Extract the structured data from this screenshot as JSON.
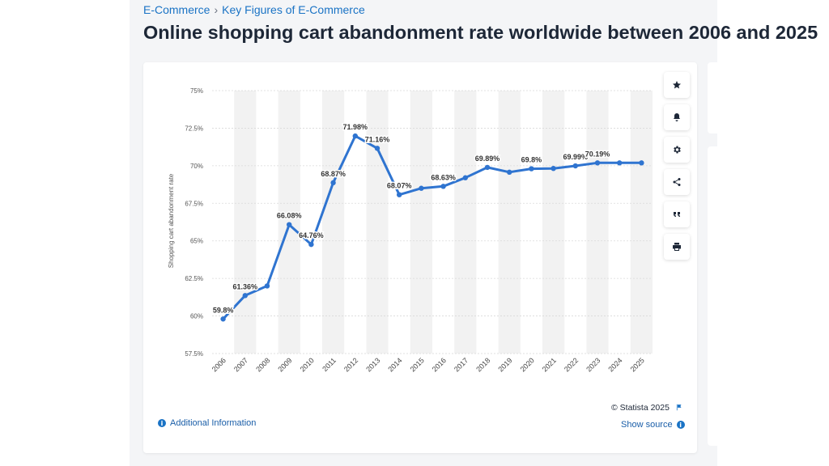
{
  "breadcrumb": {
    "parent": "E-Commerce",
    "separator": "›",
    "current": "Key Figures of E-Commerce"
  },
  "page_title": "Online shopping cart abandonment rate worldwide between 2006 and 2025",
  "toolbar": {
    "items": [
      {
        "name": "favorite",
        "icon": "star-icon"
      },
      {
        "name": "notification",
        "icon": "bell-icon"
      },
      {
        "name": "settings",
        "icon": "gear-icon"
      },
      {
        "name": "share",
        "icon": "share-icon"
      },
      {
        "name": "cite",
        "icon": "quote-icon"
      },
      {
        "name": "print",
        "icon": "print-icon"
      }
    ]
  },
  "footer": {
    "copyright": "© Statista 2025",
    "flag_icon": "flag-icon",
    "additional_info": "Additional Information",
    "show_source": "Show source",
    "info_icon_glyph": "i"
  },
  "colors": {
    "line": "#2f74d0",
    "accent": "#1a73c5",
    "title": "#1d2737",
    "band": "#f2f2f2"
  },
  "chart_data": {
    "type": "line",
    "ylabel": "Shopping cart abandonment rate",
    "xlabel": "",
    "ylim": [
      57.5,
      75
    ],
    "yticks": [
      "57.5%",
      "60%",
      "62.5%",
      "65%",
      "67.5%",
      "70%",
      "72.5%",
      "75%"
    ],
    "ytick_values": [
      57.5,
      60,
      62.5,
      65,
      67.5,
      70,
      72.5,
      75
    ],
    "grid": true,
    "categories": [
      "2006",
      "2007",
      "2008",
      "2009",
      "2010",
      "2011",
      "2012",
      "2013",
      "2014",
      "2015",
      "2016",
      "2017",
      "2018",
      "2019",
      "2020",
      "2021",
      "2022",
      "2023",
      "2024",
      "2025"
    ],
    "values": [
      59.8,
      61.36,
      62.0,
      66.08,
      64.76,
      68.87,
      71.98,
      71.16,
      68.07,
      68.5,
      68.63,
      69.2,
      69.89,
      69.57,
      69.8,
      69.82,
      69.99,
      70.19,
      70.19,
      70.19
    ],
    "data_labels": {
      "0": "59.8%",
      "1": "61.36%",
      "3": "66.08%",
      "4": "64.76%",
      "5": "68.87%",
      "6": "71.98%",
      "7": "71.16%",
      "8": "68.07%",
      "10": "68.63%",
      "12": "69.89%",
      "14": "69.8%",
      "16": "69.99%",
      "17": "70.19%"
    }
  }
}
